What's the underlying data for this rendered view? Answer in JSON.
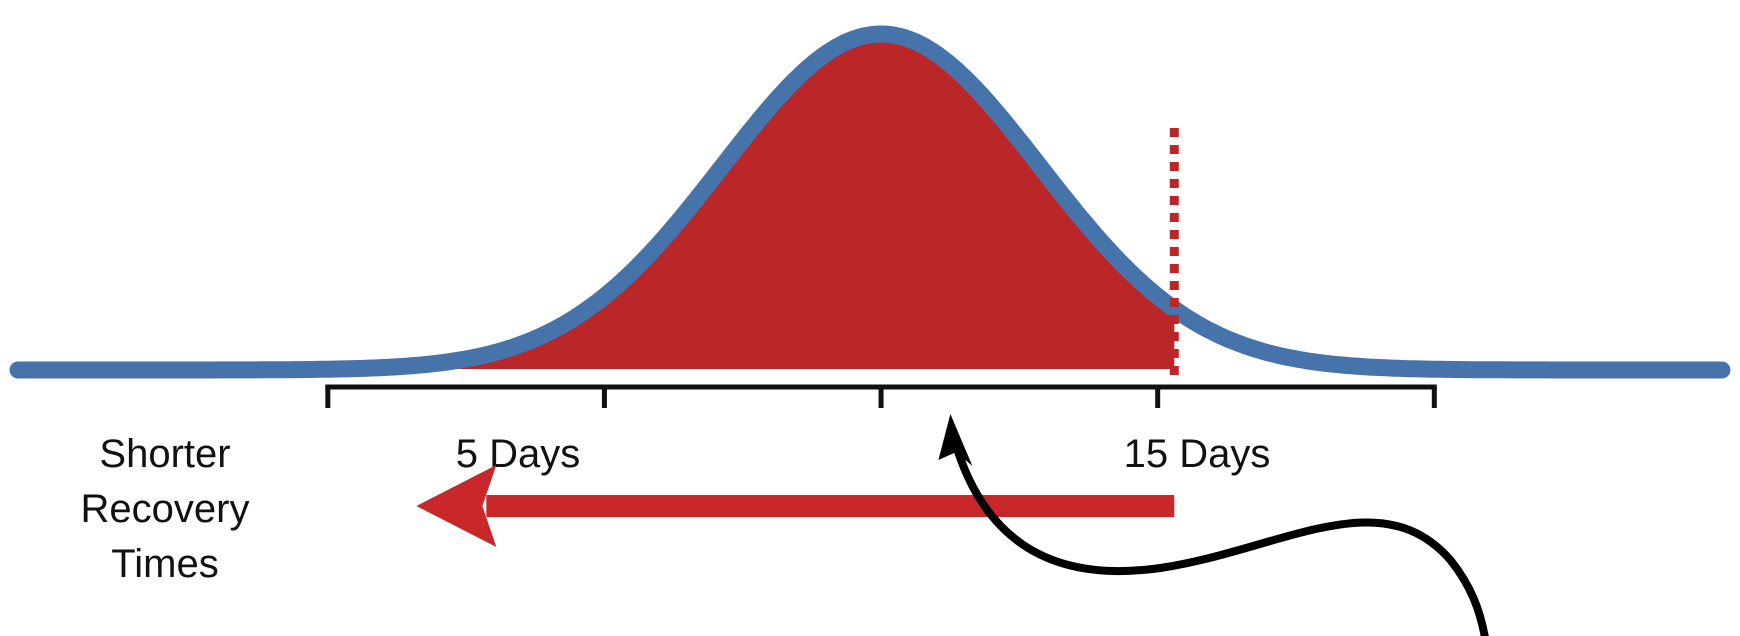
{
  "labels": {
    "left_line1": "Shorter",
    "left_line2": "Recovery",
    "left_line3": "Times",
    "tick_5": "5 Days",
    "tick_15": "15 Days"
  },
  "colors": {
    "curve": "#4674aa",
    "fill": "#bb2628",
    "arrow": "#c8282a",
    "threshold": "#bb2628",
    "axis": "#111111",
    "pointer": "#000000"
  },
  "chart_data": {
    "type": "distribution",
    "distribution": "normal",
    "x_axis": {
      "ticks": [
        0,
        5,
        10,
        15,
        20
      ],
      "tick_labels": [
        "",
        "5 Days",
        "",
        "15 Days",
        ""
      ],
      "range": [
        -5.6,
        25.2
      ]
    },
    "shaded_region": {
      "from": -5.6,
      "to": 15.3
    },
    "threshold_line": {
      "x": 15.3,
      "style": "dotted"
    },
    "arrow": {
      "direction": "left",
      "from": 15.3,
      "to": 1.6
    },
    "pointer": {
      "target_x": 11.0
    }
  }
}
